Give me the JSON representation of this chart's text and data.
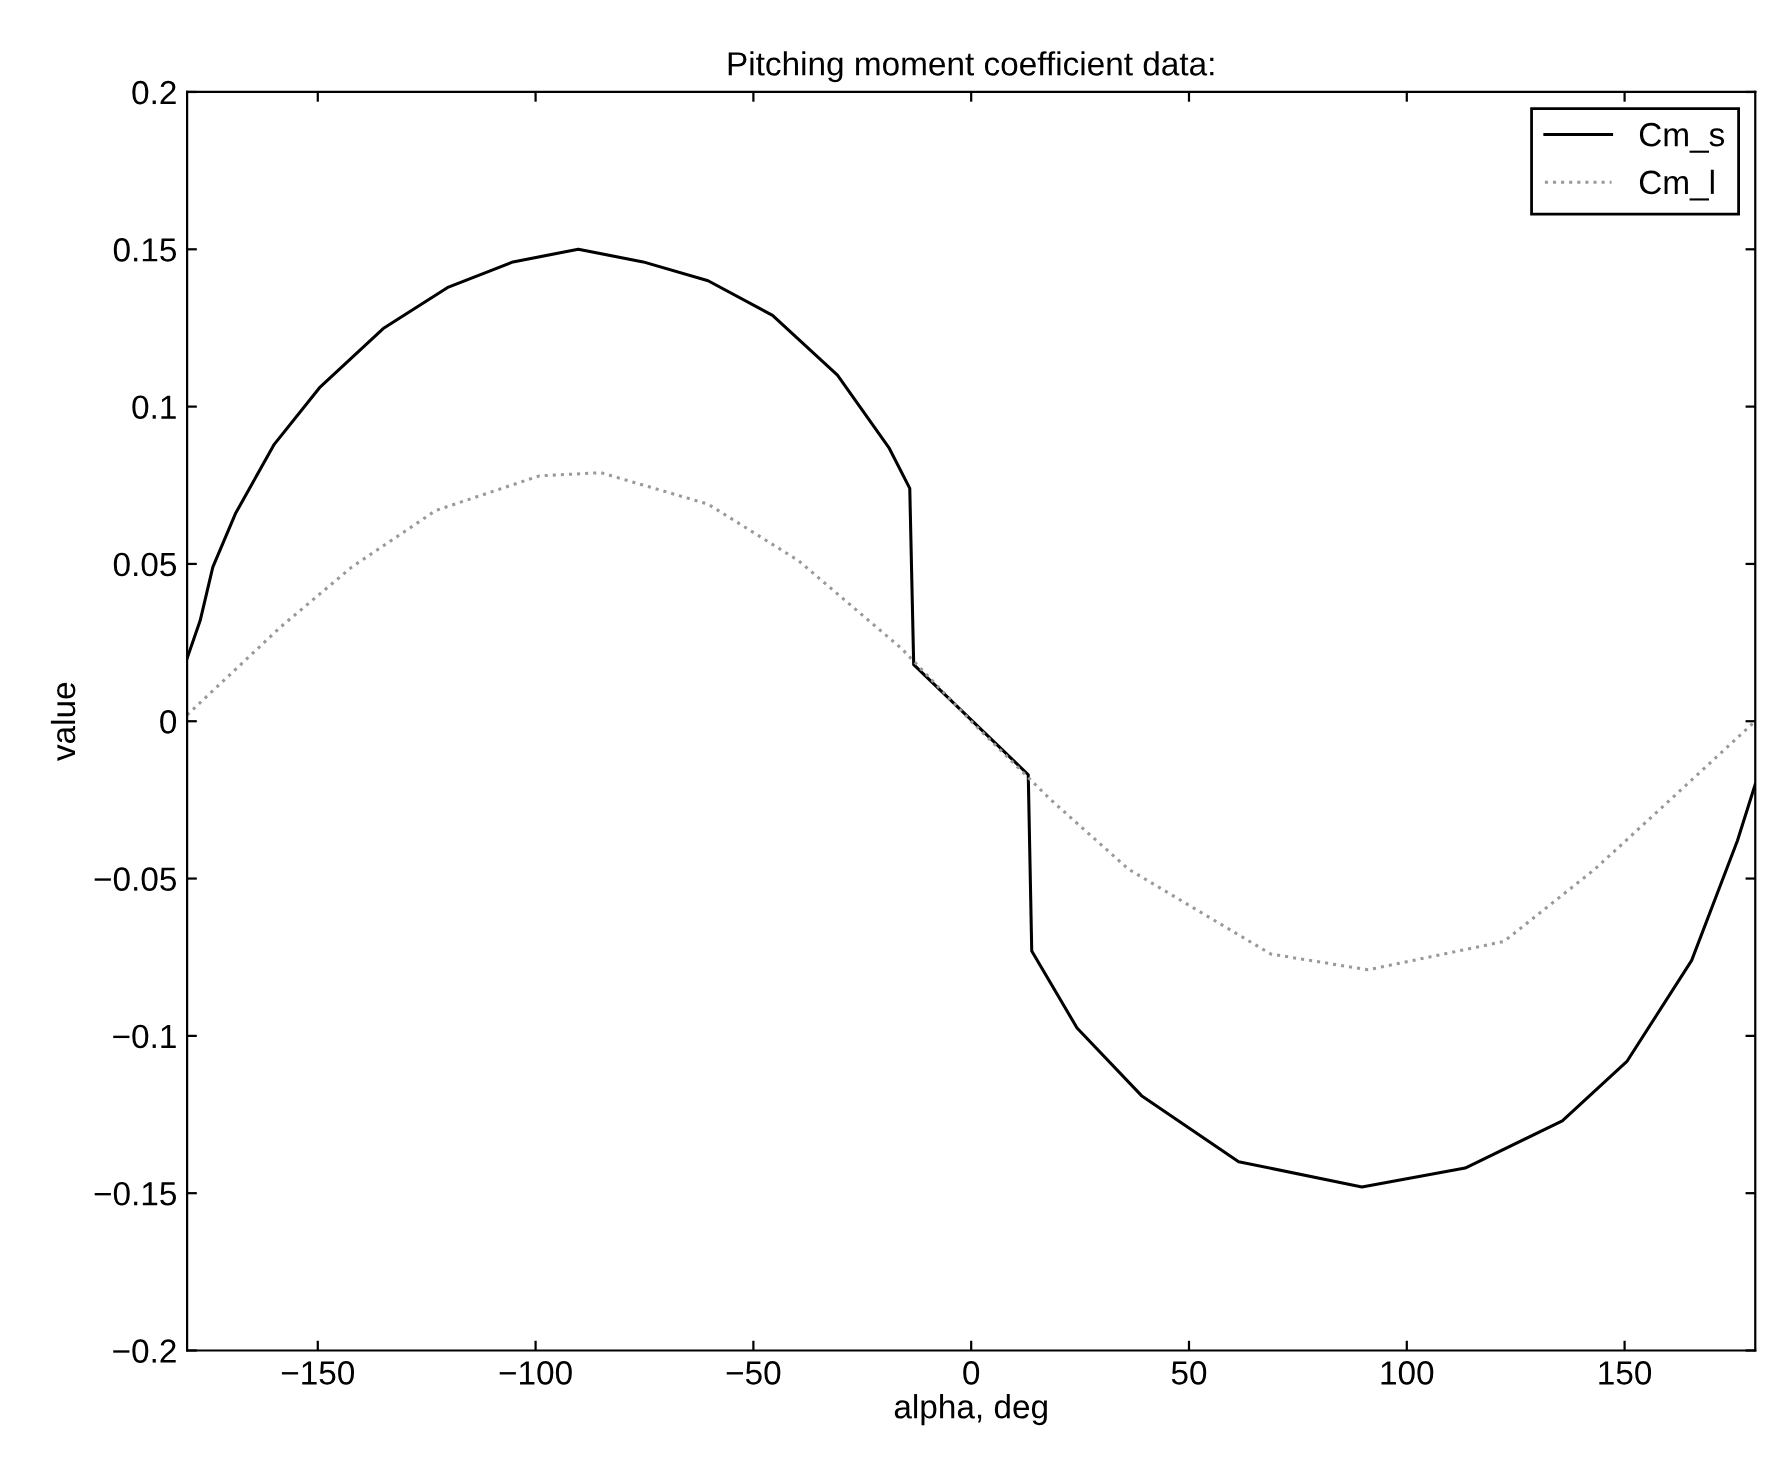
{
  "chart_data": {
    "type": "line",
    "title": "Pitching moment coefficient data:",
    "xlabel": "alpha, deg",
    "ylabel": "value",
    "xlim": [
      -180,
      180
    ],
    "xticks": [
      {
        "value": -150,
        "label": "−150"
      },
      {
        "value": -100,
        "label": "−100"
      },
      {
        "value": -50,
        "label": "−50"
      },
      0,
      50,
      100,
      150
    ],
    "ylim": [
      -0.2,
      0.2
    ],
    "yticks": [
      {
        "value": -0.2,
        "label": "−0.2"
      },
      {
        "value": -0.15,
        "label": "−0.15"
      },
      {
        "value": -0.1,
        "label": "−0.1"
      },
      {
        "value": -0.05,
        "label": "−0.05"
      },
      0,
      0.05,
      0.1,
      0.15,
      0.2
    ],
    "grid": false,
    "legend": "top right",
    "marker": "none",
    "series": [
      {
        "name": "Cm_s",
        "color": "#000000",
        "line_style": "solid",
        "x": [
          -180,
          -177,
          -174.1,
          -168.9,
          -160,
          -149.6,
          -134.8,
          -120,
          -105.2,
          -90.2,
          -75.3,
          -60.4,
          -45.6,
          -30.7,
          -18.9,
          -14.1,
          -13.2,
          13.1,
          13.9,
          24.3,
          39.1,
          61.4,
          89.7,
          113.4,
          135.7,
          150.6,
          165.4,
          175.9,
          180
        ],
        "values": [
          0.02,
          0.032,
          0.049,
          0.066,
          0.088,
          0.106,
          0.125,
          0.138,
          0.146,
          0.15,
          0.146,
          0.14,
          0.129,
          0.11,
          0.087,
          0.074,
          0.018,
          -0.017,
          -0.073,
          -0.0975,
          -0.119,
          -0.14,
          -0.148,
          -0.142,
          -0.127,
          -0.108,
          -0.076,
          -0.038,
          -0.02
        ]
      },
      {
        "name": "Cm_l",
        "color": "#999999",
        "line_style": "dotted",
        "x": [
          -180,
          -158.5,
          -142.2,
          -122.9,
          -99.1,
          -85,
          -60.4,
          -39.6,
          -15.9,
          0,
          18.3,
          36.1,
          68.8,
          91.1,
          122.3,
          143.2,
          171.4,
          180
        ],
        "values": [
          0.002,
          0.03,
          0.049,
          0.067,
          0.078,
          0.079,
          0.069,
          0.051,
          0.023,
          0,
          -0.025,
          -0.047,
          -0.074,
          -0.079,
          -0.07,
          -0.047,
          -0.011,
          0
        ]
      }
    ]
  }
}
